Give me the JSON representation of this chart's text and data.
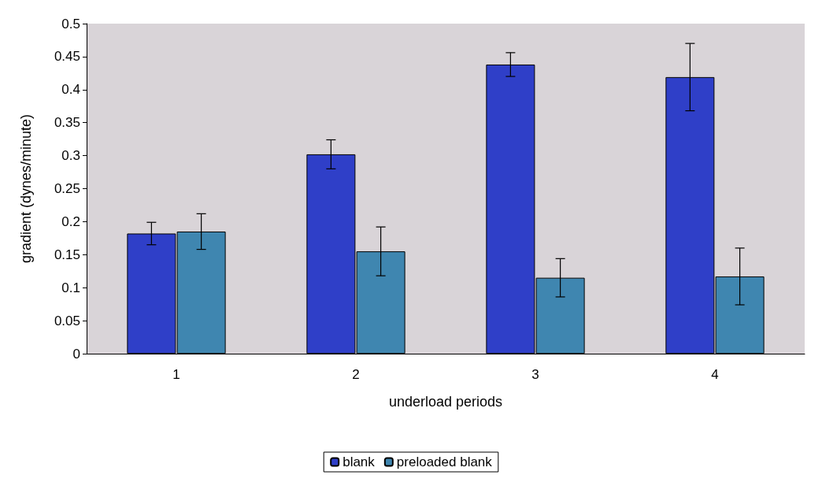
{
  "chart_data": {
    "type": "bar",
    "xlabel": "underload periods",
    "ylabel": "gradient (dynes/minute)",
    "categories": [
      "1",
      "2",
      "3",
      "4"
    ],
    "series": [
      {
        "name": "blank",
        "color": "#2f3fc8",
        "values": [
          0.182,
          0.302,
          0.438,
          0.419
        ],
        "errors": [
          0.017,
          0.022,
          0.018,
          0.051
        ]
      },
      {
        "name": "preloaded blank",
        "color": "#3f86b0",
        "values": [
          0.185,
          0.155,
          0.115,
          0.117
        ],
        "errors": [
          0.027,
          0.037,
          0.029,
          0.043
        ]
      }
    ],
    "ylim": [
      0,
      0.5
    ],
    "yticks": [
      0,
      0.05,
      0.1,
      0.15,
      0.2,
      0.25,
      0.3,
      0.35,
      0.4,
      0.45,
      0.5
    ],
    "grid": false,
    "legend": "bottom"
  }
}
